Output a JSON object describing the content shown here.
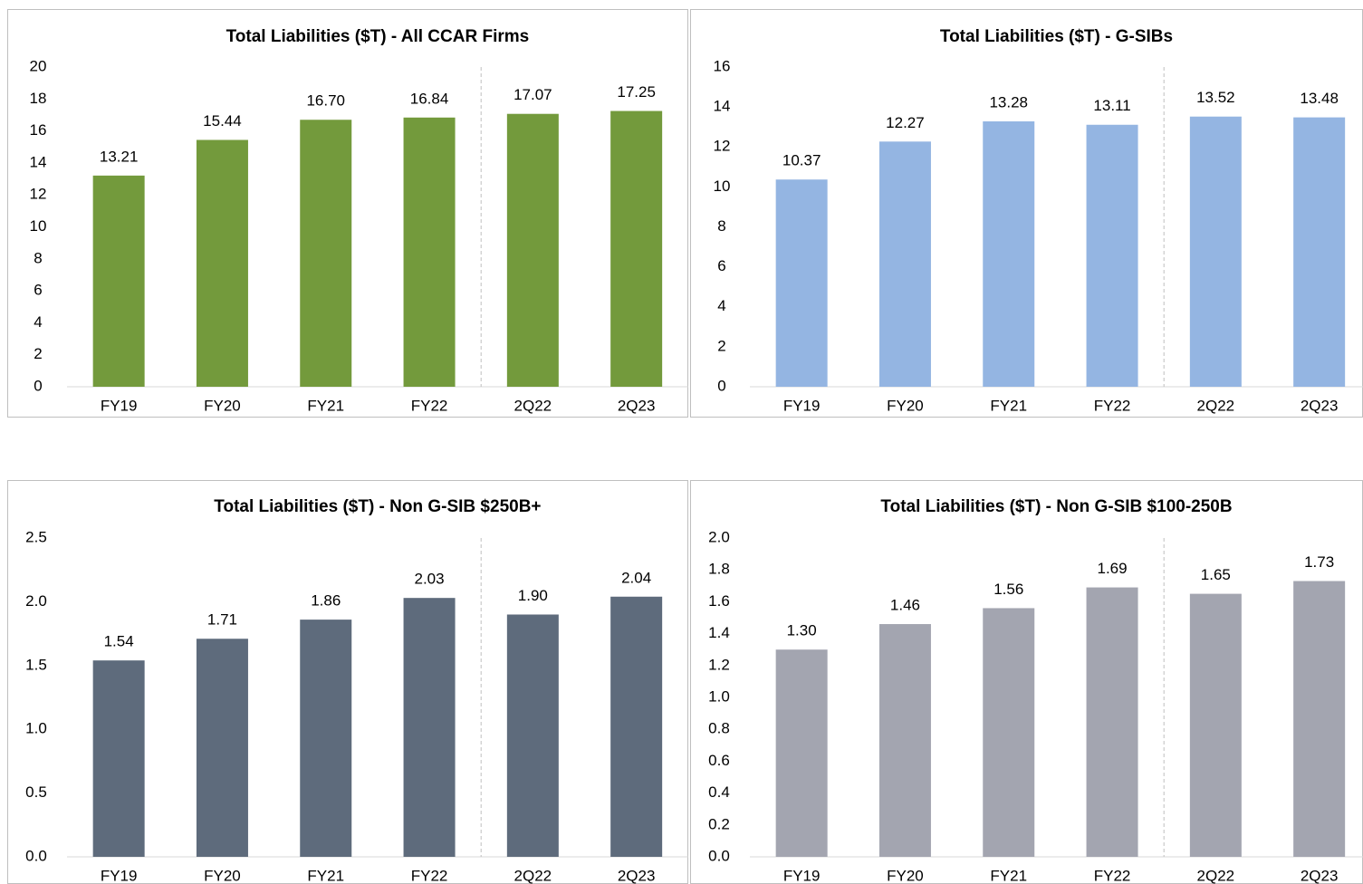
{
  "chart_data": [
    {
      "type": "bar",
      "title": "Total Liabilities ($T) - All CCAR Firms",
      "categories": [
        "FY19",
        "FY20",
        "FY21",
        "FY22",
        "2Q22",
        "2Q23"
      ],
      "values": [
        13.21,
        15.44,
        16.7,
        16.84,
        17.07,
        17.25
      ],
      "value_labels": [
        "13.21",
        "15.44",
        "16.70",
        "16.84",
        "17.07",
        "17.25"
      ],
      "color": "#739a3c",
      "ylim": [
        0,
        20
      ],
      "yticks": [
        0,
        2,
        4,
        6,
        8,
        10,
        12,
        14,
        16,
        18,
        20
      ]
    },
    {
      "type": "bar",
      "title": "Total Liabilities ($T) - G-SIBs",
      "categories": [
        "FY19",
        "FY20",
        "FY21",
        "FY22",
        "2Q22",
        "2Q23"
      ],
      "values": [
        10.37,
        12.27,
        13.28,
        13.11,
        13.52,
        13.48
      ],
      "value_labels": [
        "10.37",
        "12.27",
        "13.28",
        "13.11",
        "13.52",
        "13.48"
      ],
      "color": "#94b5e2",
      "ylim": [
        0,
        16
      ],
      "yticks": [
        0,
        2,
        4,
        6,
        8,
        10,
        12,
        14,
        16
      ]
    },
    {
      "type": "bar",
      "title": "Total Liabilities ($T) - Non G-SIB $250B+",
      "categories": [
        "FY19",
        "FY20",
        "FY21",
        "FY22",
        "2Q22",
        "2Q23"
      ],
      "values": [
        1.54,
        1.71,
        1.86,
        2.03,
        1.9,
        2.04
      ],
      "value_labels": [
        "1.54",
        "1.71",
        "1.86",
        "2.03",
        "1.90",
        "2.04"
      ],
      "color": "#5e6b7c",
      "ylim": [
        0,
        2.5
      ],
      "yticks": [
        {
          "value": 0,
          "label": "0.0"
        },
        {
          "value": 0.5,
          "label": "0.5"
        },
        {
          "value": 1,
          "label": "1.0"
        },
        {
          "value": 1.5,
          "label": "1.5"
        },
        {
          "value": 2,
          "label": "2.0"
        },
        {
          "value": 2.5,
          "label": "2.5"
        }
      ]
    },
    {
      "type": "bar",
      "title": "Total Liabilities ($T) - Non G-SIB $100-250B",
      "categories": [
        "FY19",
        "FY20",
        "FY21",
        "FY22",
        "2Q22",
        "2Q23"
      ],
      "values": [
        1.3,
        1.46,
        1.56,
        1.69,
        1.65,
        1.73
      ],
      "value_labels": [
        "1.30",
        "1.46",
        "1.56",
        "1.69",
        "1.65",
        "1.73"
      ],
      "color": "#a3a5b0",
      "ylim": [
        0,
        2
      ],
      "yticks": [
        {
          "value": 0,
          "label": "0.0"
        },
        {
          "value": 0.2,
          "label": "0.2"
        },
        {
          "value": 0.4,
          "label": "0.4"
        },
        {
          "value": 0.6,
          "label": "0.6"
        },
        {
          "value": 0.8,
          "label": "0.8"
        },
        {
          "value": 1,
          "label": "1.0"
        },
        {
          "value": 1.2,
          "label": "1.2"
        },
        {
          "value": 1.4,
          "label": "1.4"
        },
        {
          "value": 1.6,
          "label": "1.6"
        },
        {
          "value": 1.8,
          "label": "1.8"
        },
        {
          "value": 2,
          "label": "2.0"
        }
      ]
    }
  ]
}
